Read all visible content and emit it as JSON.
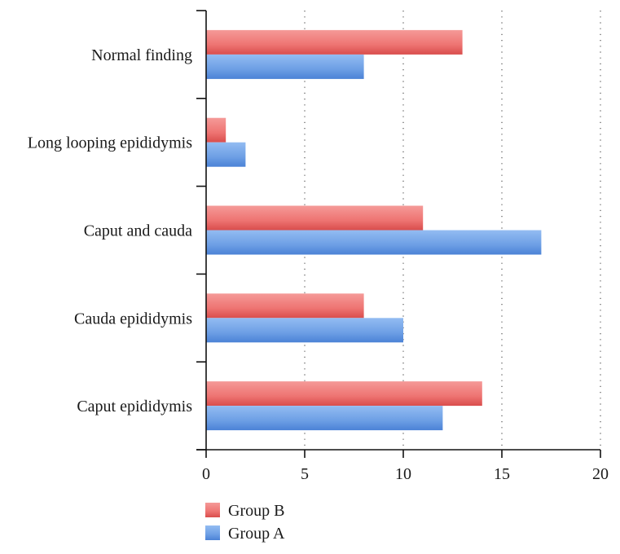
{
  "chart_data": {
    "type": "bar",
    "orientation": "horizontal",
    "categories": [
      "Normal finding",
      "Long looping epididymis",
      "Caput and cauda",
      "Cauda epididymis",
      "Caput epididymis"
    ],
    "series": [
      {
        "name": "Group B",
        "values": [
          13,
          1,
          11,
          8,
          14
        ],
        "color": "#e8605f"
      },
      {
        "name": "Group A",
        "values": [
          8,
          2,
          17,
          10,
          12
        ],
        "color": "#6a9fe6"
      }
    ],
    "xlim": [
      0,
      20
    ],
    "xticks": [
      "0",
      "5",
      "10",
      "15",
      "20"
    ],
    "grid": "vertical dotted",
    "legend_position": "bottom-left"
  }
}
